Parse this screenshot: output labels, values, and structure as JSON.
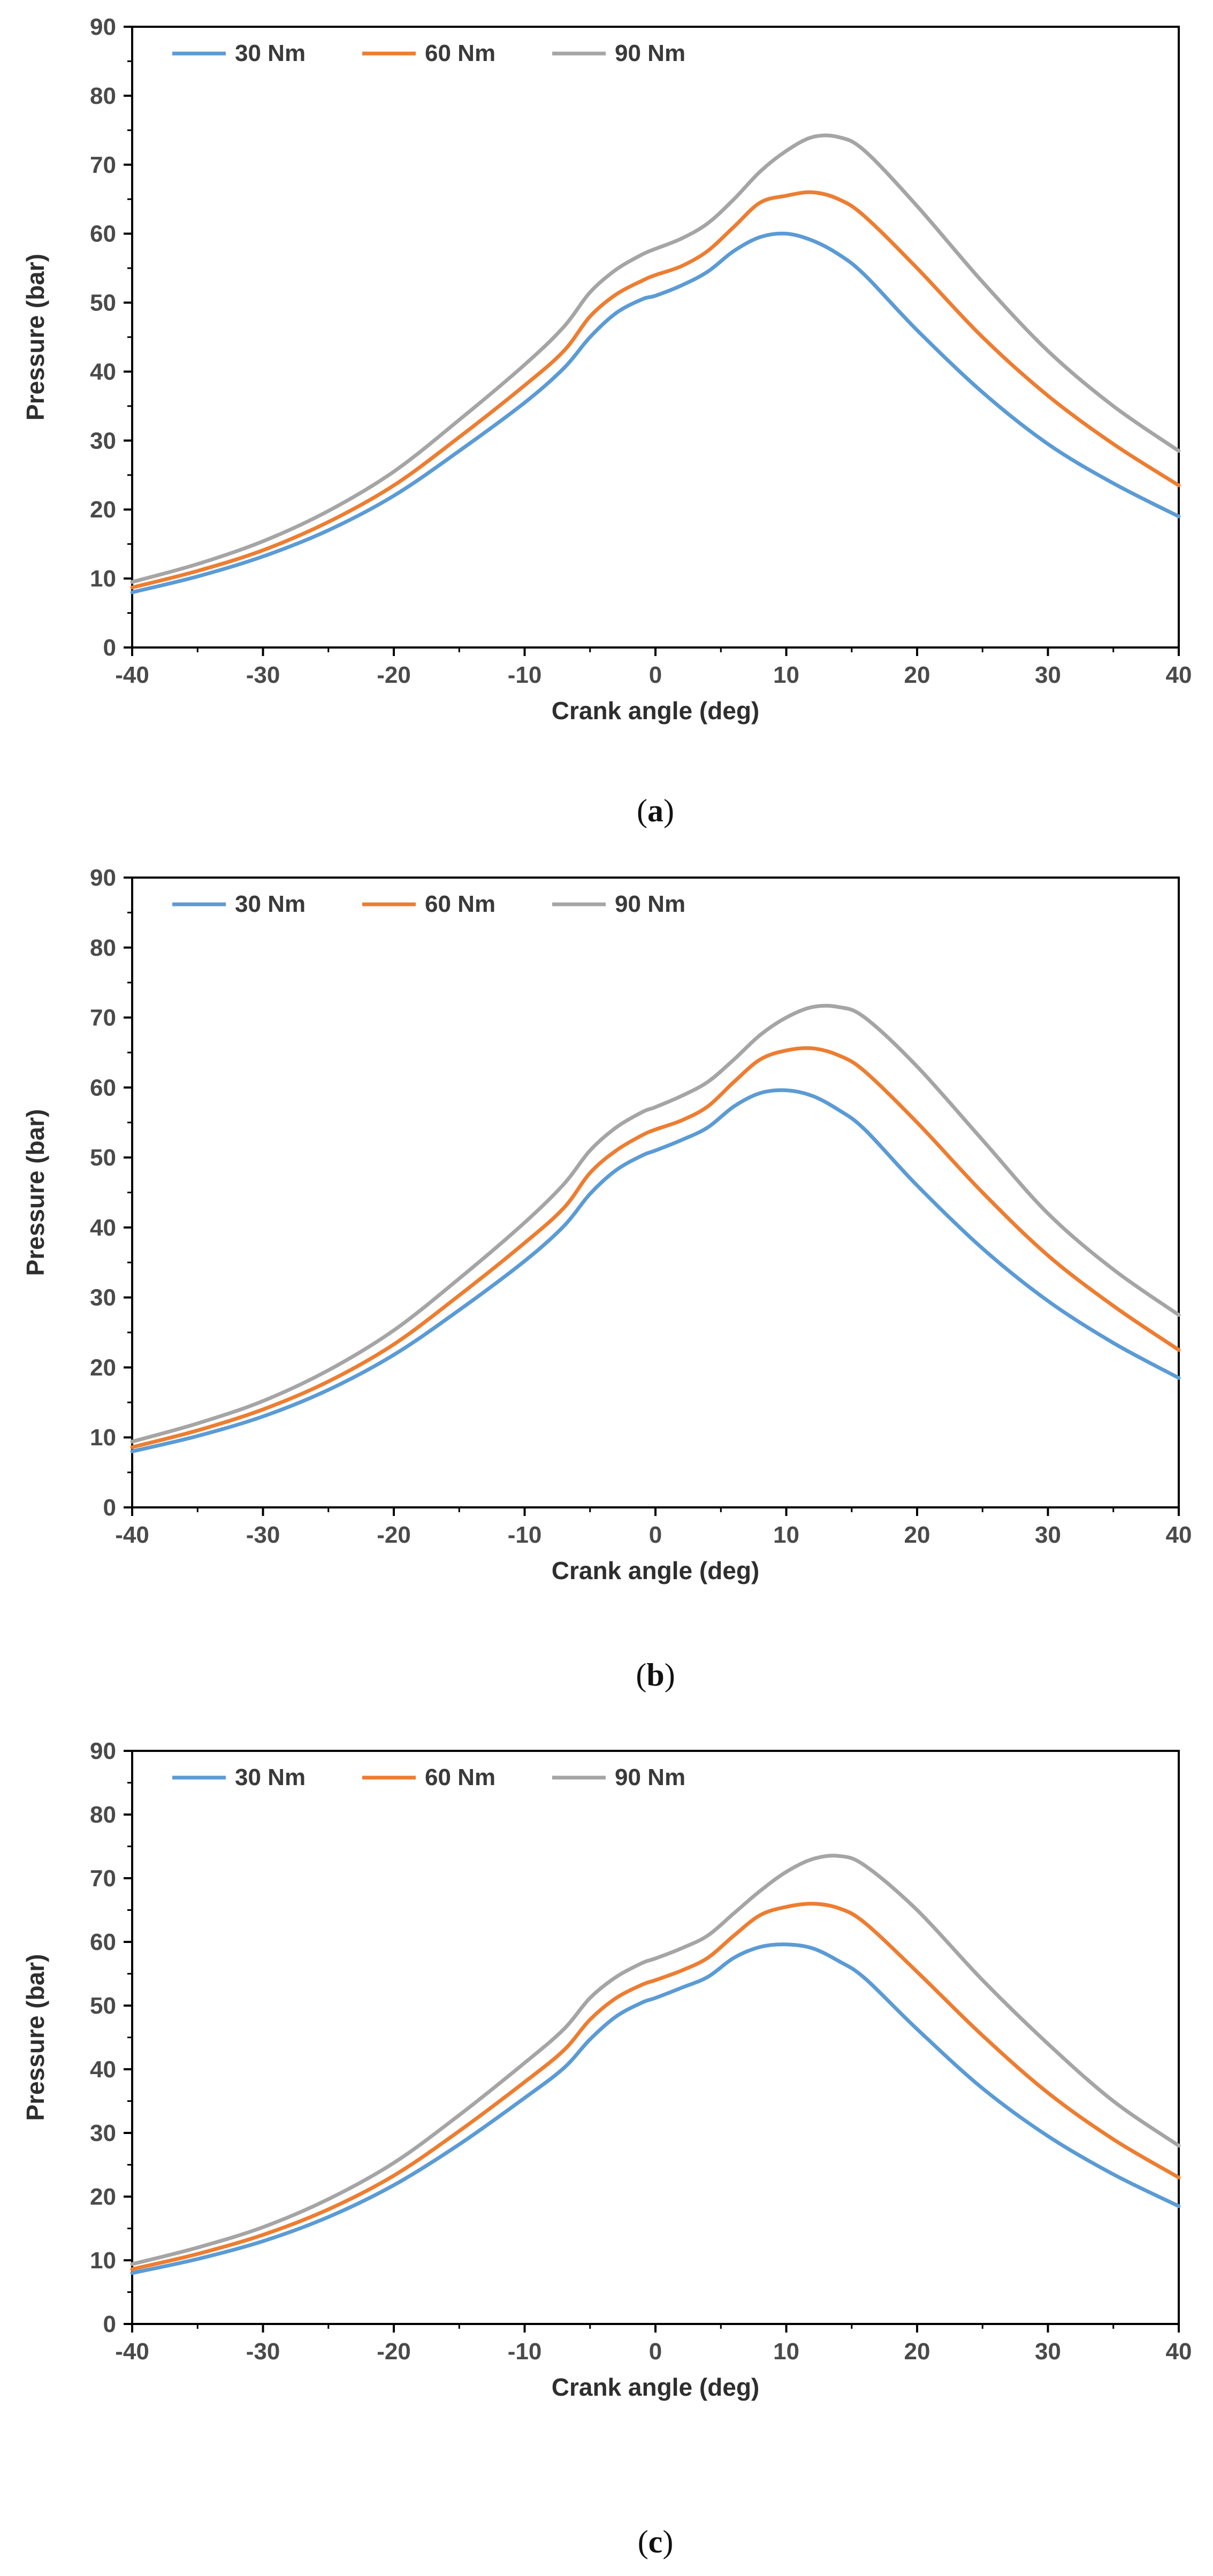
{
  "chart_data": [
    {
      "type": "line",
      "caption": "(a)",
      "caption_letter": "a",
      "title": "",
      "xlabel": "Crank angle (deg)",
      "ylabel": "Pressure (bar)",
      "xlim": [
        -40,
        40
      ],
      "ylim": [
        0,
        90
      ],
      "xticks": [
        -40,
        -30,
        -20,
        -10,
        0,
        10,
        20,
        30,
        40
      ],
      "yticks": [
        0,
        10,
        20,
        30,
        40,
        50,
        60,
        70,
        80,
        90
      ],
      "legend_position": "top-left",
      "x": [
        -40,
        -35,
        -30,
        -25,
        -20,
        -15,
        -10,
        -7,
        -5,
        -3,
        -1,
        0,
        2,
        4,
        6,
        8,
        10,
        12,
        14,
        16,
        20,
        25,
        30,
        35,
        40
      ],
      "series": [
        {
          "name": "30 Nm",
          "color": "#5b9bd5",
          "values": [
            8,
            10.3,
            13.2,
            17,
            22,
            28.5,
            35.5,
            40.5,
            45,
            48.5,
            50.5,
            51,
            52.5,
            54.5,
            57.5,
            59.5,
            60,
            59,
            57,
            54,
            46,
            37,
            29.5,
            23.8,
            19
          ]
        },
        {
          "name": "60 Nm",
          "color": "#ed7d31",
          "values": [
            8.7,
            11.1,
            14.1,
            18.2,
            23.5,
            30.5,
            38,
            43,
            48,
            51.2,
            53.2,
            54,
            55.3,
            57.5,
            61,
            64.5,
            65.5,
            66,
            65,
            62.5,
            55,
            45,
            36.5,
            29.5,
            23.5
          ]
        },
        {
          "name": "90 Nm",
          "color": "#a5a5a5",
          "values": [
            9.5,
            12.1,
            15.4,
            19.8,
            25.5,
            33,
            41,
            46.5,
            51.5,
            54.8,
            57,
            57.8,
            59.3,
            61.5,
            65,
            69,
            72,
            74,
            74,
            72,
            64,
            53,
            43,
            35,
            28.5
          ]
        }
      ]
    },
    {
      "type": "line",
      "caption": "(b)",
      "caption_letter": "b",
      "title": "",
      "xlabel": "Crank angle (deg)",
      "ylabel": "Pressure (bar)",
      "xlim": [
        -40,
        40
      ],
      "ylim": [
        0,
        90
      ],
      "xticks": [
        -40,
        -30,
        -20,
        -10,
        0,
        10,
        20,
        30,
        40
      ],
      "yticks": [
        0,
        10,
        20,
        30,
        40,
        50,
        60,
        70,
        80,
        90
      ],
      "legend_position": "top-left",
      "x": [
        -40,
        -35,
        -30,
        -25,
        -20,
        -15,
        -10,
        -7,
        -5,
        -3,
        -1,
        0,
        2,
        4,
        6,
        8,
        10,
        12,
        14,
        16,
        20,
        25,
        30,
        35,
        40
      ],
      "series": [
        {
          "name": "30 Nm",
          "color": "#5b9bd5",
          "values": [
            8,
            10.2,
            13,
            16.8,
            21.8,
            28.2,
            35.2,
            40.2,
            44.8,
            48.2,
            50.3,
            51,
            52.5,
            54.3,
            57.3,
            59.2,
            59.6,
            58.8,
            56.8,
            54,
            46,
            37,
            29.5,
            23.5,
            18.5
          ]
        },
        {
          "name": "60 Nm",
          "color": "#ed7d31",
          "values": [
            8.6,
            11,
            14,
            18,
            23.3,
            30.3,
            37.8,
            42.8,
            47.8,
            51,
            53.2,
            54,
            55.3,
            57.3,
            60.8,
            64,
            65.3,
            65.6,
            64.6,
            62.3,
            55,
            45,
            36,
            28.8,
            22.5
          ]
        },
        {
          "name": "90 Nm",
          "color": "#a5a5a5",
          "values": [
            9.4,
            12,
            15.2,
            19.6,
            25.3,
            32.7,
            40.7,
            46.2,
            51,
            54.3,
            56.5,
            57.2,
            58.8,
            60.8,
            64,
            67.5,
            70,
            71.5,
            71.5,
            70,
            63,
            52.5,
            42,
            34,
            27.5
          ]
        }
      ]
    },
    {
      "type": "line",
      "caption": "(c)",
      "caption_letter": "c",
      "title": "",
      "xlabel": "Crank angle (deg)",
      "ylabel": "Pressure (bar)",
      "xlim": [
        -40,
        40
      ],
      "ylim": [
        0,
        90
      ],
      "xticks": [
        -40,
        -30,
        -20,
        -10,
        0,
        10,
        20,
        30,
        40
      ],
      "yticks": [
        0,
        10,
        20,
        30,
        40,
        50,
        60,
        70,
        80,
        90
      ],
      "legend_position": "top-left",
      "x": [
        -40,
        -35,
        -30,
        -25,
        -20,
        -15,
        -10,
        -7,
        -5,
        -3,
        -1,
        0,
        2,
        4,
        6,
        8,
        10,
        12,
        14,
        16,
        20,
        25,
        30,
        35,
        40
      ],
      "series": [
        {
          "name": "30 Nm",
          "color": "#5b9bd5",
          "values": [
            8,
            10.2,
            13,
            16.8,
            21.8,
            28.2,
            35.5,
            40.2,
            44.7,
            48.3,
            50.5,
            51.2,
            52.8,
            54.5,
            57.5,
            59.2,
            59.6,
            59,
            57,
            54.3,
            46.3,
            37,
            29.5,
            23.5,
            18.5
          ]
        },
        {
          "name": "60 Nm",
          "color": "#ed7d31",
          "values": [
            8.6,
            11,
            14,
            18,
            23.3,
            30.3,
            38,
            43,
            47.8,
            51.2,
            53.3,
            54,
            55.5,
            57.5,
            61,
            64.2,
            65.5,
            66,
            65.3,
            63,
            55.3,
            45.3,
            36.3,
            29,
            23
          ]
        },
        {
          "name": "90 Nm",
          "color": "#a5a5a5",
          "values": [
            9.4,
            12,
            15.2,
            19.6,
            25.3,
            32.8,
            41,
            46.3,
            51.2,
            54.5,
            56.7,
            57.4,
            59,
            61,
            64.5,
            68,
            71,
            73,
            73.5,
            72,
            65,
            54,
            44,
            35,
            28
          ]
        }
      ]
    }
  ]
}
